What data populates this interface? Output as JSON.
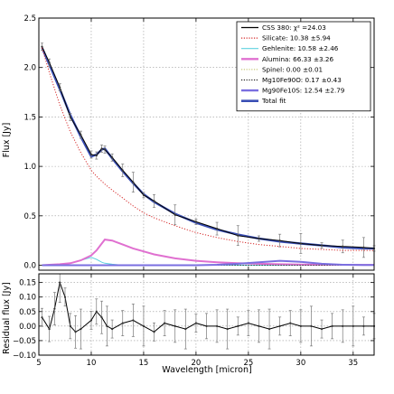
{
  "chart_data": [
    {
      "type": "line",
      "xlabel": "",
      "ylabel": "Flux [Jy]",
      "xlim": [
        5,
        37
      ],
      "ylim": [
        -0.05,
        2.5
      ],
      "grid": true,
      "legend_position": "top-right",
      "x_ticks": [
        5,
        10,
        15,
        20,
        25,
        30,
        35
      ],
      "y_ticks": [
        0.0,
        0.5,
        1.0,
        1.5,
        2.0,
        2.5
      ],
      "y_tick_labels": [
        "0.0",
        "0.5",
        "1.0",
        "1.5",
        "2.0",
        "2.5"
      ],
      "x": [
        5.3,
        6,
        7,
        8,
        9,
        10,
        10.5,
        11,
        11.3,
        12,
        13,
        14,
        15,
        16,
        18,
        20,
        22,
        24,
        26,
        28,
        30,
        32,
        34,
        36,
        37
      ],
      "series": [
        {
          "name": "Total fit",
          "label": "Total fit",
          "color": "#3a4fb5",
          "style": "solid-thick",
          "values": [
            2.2,
            2.03,
            1.78,
            1.52,
            1.3,
            1.1,
            1.12,
            1.17,
            1.18,
            1.08,
            0.95,
            0.83,
            0.72,
            0.64,
            0.52,
            0.43,
            0.36,
            0.31,
            0.27,
            0.24,
            0.22,
            0.2,
            0.18,
            0.17,
            0.17
          ]
        },
        {
          "name": "CSS 380",
          "label": "CSS 380: χ² =24.03",
          "color": "#000000",
          "style": "solid",
          "values": [
            2.21,
            2.05,
            1.8,
            1.5,
            1.32,
            1.12,
            1.11,
            1.18,
            1.17,
            1.09,
            0.96,
            0.84,
            0.71,
            0.65,
            0.51,
            0.44,
            0.37,
            0.3,
            0.27,
            0.25,
            0.22,
            0.2,
            0.19,
            0.18,
            0.17
          ]
        },
        {
          "name": "Silicate",
          "label": "Silicate: 10.38 ±5.94",
          "color": "#d62828",
          "style": "dotted",
          "values": [
            2.2,
            1.95,
            1.62,
            1.35,
            1.14,
            0.96,
            0.9,
            0.85,
            0.82,
            0.76,
            0.68,
            0.6,
            0.53,
            0.48,
            0.4,
            0.33,
            0.28,
            0.24,
            0.21,
            0.19,
            0.17,
            0.16,
            0.15,
            0.15,
            0.15
          ]
        },
        {
          "name": "Gehlenite",
          "label": "Gehlenite: 10.58 ±2.46",
          "color": "#5fd3e0",
          "style": "solid",
          "values": [
            0,
            0,
            0.005,
            0.02,
            0.05,
            0.08,
            0.06,
            0.03,
            0.02,
            0.01,
            0,
            0,
            0,
            0,
            0,
            0,
            0,
            0,
            0,
            0,
            0,
            0,
            0,
            0,
            0
          ]
        },
        {
          "name": "Alumina",
          "label": "Alumina: 66.33 ±3.26",
          "color": "#e070d0",
          "style": "solid-thick",
          "values": [
            0,
            0.005,
            0.01,
            0.02,
            0.05,
            0.1,
            0.15,
            0.22,
            0.26,
            0.25,
            0.21,
            0.17,
            0.14,
            0.11,
            0.07,
            0.045,
            0.03,
            0.02,
            0.015,
            0.01,
            0.008,
            0.006,
            0.005,
            0.004,
            0.004
          ]
        },
        {
          "name": "Spinel",
          "label": "Spinel: 0.00 ±0.01",
          "color": "#c9c97a",
          "style": "dotted",
          "values": [
            0,
            0,
            0,
            0,
            0,
            0,
            0,
            0,
            0,
            0,
            0,
            0,
            0,
            0,
            0,
            0,
            0,
            0,
            0,
            0,
            0,
            0,
            0,
            0,
            0
          ]
        },
        {
          "name": "Mg10Fe90O",
          "label": "Mg10Fe90O: 0.17 ±0.43",
          "color": "#222222",
          "style": "dotted",
          "values": [
            0,
            0,
            0,
            0,
            0,
            0,
            0,
            0,
            0,
            0,
            0,
            0,
            0,
            0,
            0,
            0,
            0,
            0,
            0,
            0,
            0,
            0,
            0,
            0,
            0
          ]
        },
        {
          "name": "Mg90Fe10S",
          "label": "Mg90Fe10S: 12.54 ±2.79",
          "color": "#7a6fe0",
          "style": "solid-thick",
          "values": [
            0,
            0,
            0,
            0,
            0,
            0,
            0,
            0,
            0,
            0,
            0,
            0,
            0,
            0,
            0,
            0,
            0.005,
            0.015,
            0.03,
            0.045,
            0.035,
            0.015,
            0.005,
            0.002,
            0.002
          ]
        }
      ]
    },
    {
      "type": "line",
      "xlabel": "Wavelength [micron]",
      "ylabel": "Residual flux [Jy]",
      "xlim": [
        5,
        37
      ],
      "ylim": [
        -0.1,
        0.18
      ],
      "grid": true,
      "x_ticks": [
        5,
        10,
        15,
        20,
        25,
        30,
        35
      ],
      "x_tick_labels": [
        "5",
        "10",
        "15",
        "20",
        "25",
        "30",
        "35"
      ],
      "y_ticks": [
        -0.1,
        -0.05,
        0.0,
        0.05,
        0.1,
        0.15
      ],
      "y_tick_labels": [
        "−0.10",
        "−0.05",
        "0.00",
        "0.05",
        "0.10",
        "0.15"
      ],
      "x": [
        5.3,
        6,
        6.5,
        7,
        7.5,
        8,
        8.5,
        9,
        10,
        10.5,
        11,
        11.5,
        12,
        13,
        14,
        15,
        16,
        17,
        18,
        19,
        20,
        21,
        22,
        23,
        24,
        25,
        26,
        27,
        28,
        29,
        30,
        31,
        32,
        33,
        34,
        35,
        36,
        37
      ],
      "series": [
        {
          "name": "Residual",
          "color": "#000000",
          "values": [
            0.03,
            -0.01,
            0.06,
            0.15,
            0.1,
            0.0,
            -0.02,
            -0.01,
            0.02,
            0.05,
            0.03,
            0.0,
            -0.01,
            0.01,
            0.02,
            0.0,
            -0.02,
            0.01,
            0.0,
            -0.01,
            0.01,
            0.0,
            0.0,
            -0.01,
            0.0,
            0.01,
            0.0,
            -0.01,
            0.0,
            0.01,
            0.0,
            0.0,
            -0.01,
            0.0,
            0.0,
            0.0,
            0.0,
            0.0
          ]
        }
      ]
    }
  ]
}
